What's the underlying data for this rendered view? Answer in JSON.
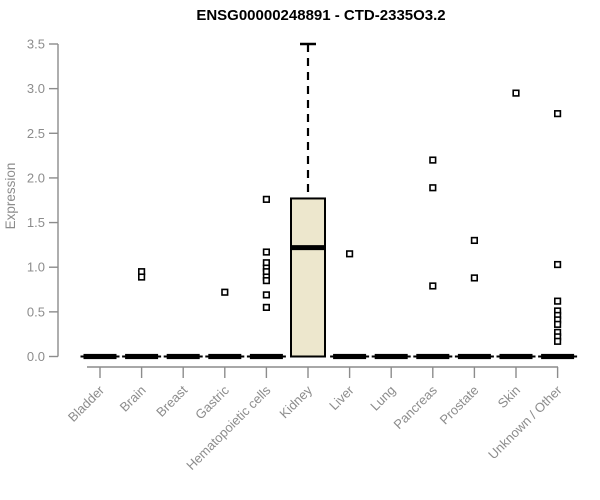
{
  "chart_data": {
    "type": "boxplot",
    "title": "ENSG00000248891 - CTD-2335O3.2",
    "ylabel": "Expression",
    "xlabel": "",
    "ylim": [
      0,
      3.5
    ],
    "yticks": [
      "0.0",
      "0.5",
      "1.0",
      "1.5",
      "2.0",
      "2.5",
      "3.0",
      "3.5"
    ],
    "grid": false,
    "legend": "none",
    "outlier_marker": "open-square",
    "colors": {
      "box_fill": "#ede7cd",
      "box_border": "#000000",
      "median": "#000000",
      "axis": "#8c8c8c",
      "tick_label": "#8c8c8c",
      "title": "#000000",
      "background": "#ffffff"
    },
    "categories": [
      "Bladder",
      "Brain",
      "Breast",
      "Gastric",
      "Hematopoietic cells",
      "Kidney",
      "Liver",
      "Lung",
      "Pancreas",
      "Prostate",
      "Skin",
      "Unknown / Other"
    ],
    "boxes": [
      {
        "category": "Bladder",
        "q1": 0,
        "median": 0,
        "q3": 0,
        "whisker_low": 0,
        "whisker_high": 0,
        "outliers": []
      },
      {
        "category": "Brain",
        "q1": 0,
        "median": 0,
        "q3": 0,
        "whisker_low": 0,
        "whisker_high": 0,
        "outliers": [
          0.95,
          0.89
        ]
      },
      {
        "category": "Breast",
        "q1": 0,
        "median": 0,
        "q3": 0,
        "whisker_low": 0,
        "whisker_high": 0,
        "outliers": []
      },
      {
        "category": "Gastric",
        "q1": 0,
        "median": 0,
        "q3": 0,
        "whisker_low": 0,
        "whisker_high": 0,
        "outliers": [
          0.72
        ]
      },
      {
        "category": "Hematopoietic cells",
        "q1": 0,
        "median": 0,
        "q3": 0,
        "whisker_low": 0,
        "whisker_high": 0,
        "outliers": [
          1.76,
          1.17,
          1.05,
          0.99,
          0.95,
          0.89,
          0.85,
          0.69,
          0.55
        ]
      },
      {
        "category": "Kidney",
        "q1": 0,
        "median": 1.22,
        "q3": 1.77,
        "whisker_low": 0,
        "whisker_high": 3.5,
        "outliers": []
      },
      {
        "category": "Liver",
        "q1": 0,
        "median": 0,
        "q3": 0,
        "whisker_low": 0,
        "whisker_high": 0,
        "outliers": [
          1.15
        ]
      },
      {
        "category": "Lung",
        "q1": 0,
        "median": 0,
        "q3": 0,
        "whisker_low": 0,
        "whisker_high": 0,
        "outliers": []
      },
      {
        "category": "Pancreas",
        "q1": 0,
        "median": 0,
        "q3": 0,
        "whisker_low": 0,
        "whisker_high": 0,
        "outliers": [
          2.2,
          1.89,
          0.79
        ]
      },
      {
        "category": "Prostate",
        "q1": 0,
        "median": 0,
        "q3": 0,
        "whisker_low": 0,
        "whisker_high": 0,
        "outliers": [
          1.3,
          0.88
        ]
      },
      {
        "category": "Skin",
        "q1": 0,
        "median": 0,
        "q3": 0,
        "whisker_low": 0,
        "whisker_high": 0,
        "outliers": [
          2.95
        ]
      },
      {
        "category": "Unknown / Other",
        "q1": 0,
        "median": 0,
        "q3": 0,
        "whisker_low": 0,
        "whisker_high": 0,
        "outliers": [
          2.72,
          1.03,
          0.62,
          0.51,
          0.46,
          0.41,
          0.36,
          0.27,
          0.22,
          0.17
        ]
      }
    ]
  }
}
